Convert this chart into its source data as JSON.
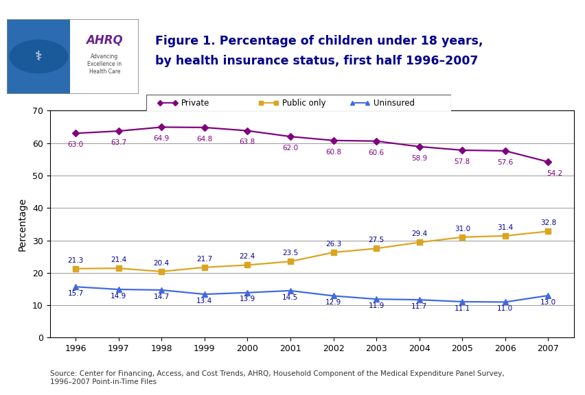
{
  "years": [
    1996,
    1997,
    1998,
    1999,
    2000,
    2001,
    2002,
    2003,
    2004,
    2005,
    2006,
    2007
  ],
  "private": [
    63.0,
    63.7,
    64.9,
    64.8,
    63.8,
    62.0,
    60.8,
    60.6,
    58.9,
    57.8,
    57.6,
    54.2
  ],
  "public_only": [
    21.3,
    21.4,
    20.4,
    21.7,
    22.4,
    23.5,
    26.3,
    27.5,
    29.4,
    31.0,
    31.4,
    32.8
  ],
  "uninsured": [
    15.7,
    14.9,
    14.7,
    13.4,
    13.9,
    14.5,
    12.9,
    11.9,
    11.7,
    11.1,
    11.0,
    13.0
  ],
  "private_color": "#800080",
  "public_color": "#DAA520",
  "uninsured_color": "#4169E1",
  "private_label": "Private",
  "public_label": "Public only",
  "uninsured_label": "Uninsured",
  "ylabel": "Percentage",
  "ylim": [
    0,
    70
  ],
  "yticks": [
    0,
    10,
    20,
    30,
    40,
    50,
    60,
    70
  ],
  "title_line1": "Figure 1. Percentage of children under 18 years,",
  "title_line2": "by health insurance status, first half 1996–2007",
  "source_text": "Source: Center for Financing, Access, and Cost Trends, AHRQ, Household Component of the Medical Expenditure Panel Survey,\n1996–2007 Point-in-Time Files",
  "background_color": "#FFFFFF",
  "header_bar_color": "#00008B",
  "label_private_color": "#800080",
  "label_public_color": "#00008B",
  "label_uninsured_color": "#00008B"
}
